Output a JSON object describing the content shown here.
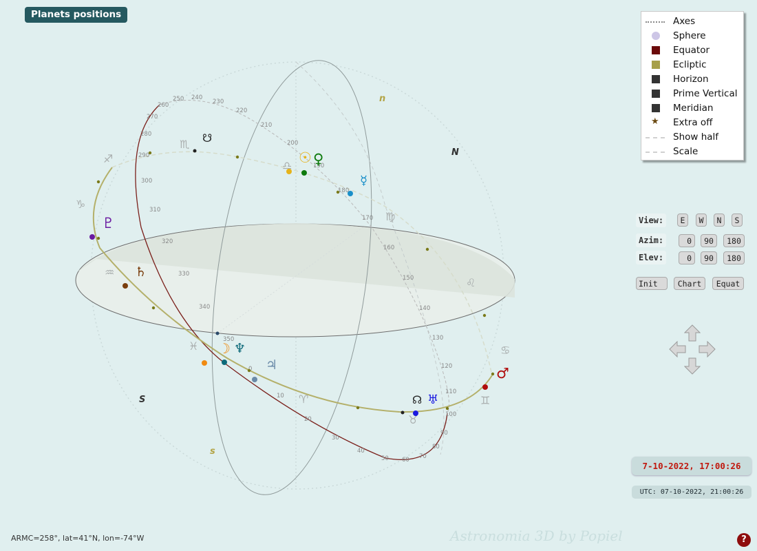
{
  "title": "Planets positions",
  "legend": [
    {
      "label": "Axes",
      "icon": "axes-dotted-line-icon",
      "color": "#888888"
    },
    {
      "label": "Sphere",
      "icon": "sphere-dot-icon",
      "color": "#cdc6e6"
    },
    {
      "label": "Equator",
      "icon": "equator-square-icon",
      "color": "#6b0a0a"
    },
    {
      "label": "Ecliptic",
      "icon": "ecliptic-square-icon",
      "color": "#a7a04a"
    },
    {
      "label": "Horizon",
      "icon": "horizon-square-icon",
      "color": "#333333"
    },
    {
      "label": "Prime Vertical",
      "icon": "prime-vertical-square-icon",
      "color": "#333333"
    },
    {
      "label": "Meridian",
      "icon": "meridian-square-icon",
      "color": "#333333"
    },
    {
      "label": "Extra off",
      "icon": "star-icon",
      "color": "#6b4a12"
    },
    {
      "label": "Show half",
      "icon": "dashed-line-icon",
      "color": "#d0d0d0"
    },
    {
      "label": "Scale",
      "icon": "dashed-line-icon",
      "color": "#d0d0d0"
    }
  ],
  "controls": {
    "view_label": "View:",
    "view_buttons": [
      "E",
      "W",
      "N",
      "S"
    ],
    "azim_label": "Azim:",
    "azim_buttons": [
      "0",
      "90",
      "180"
    ],
    "elev_label": "Elev:",
    "elev_buttons": [
      "0",
      "90",
      "180"
    ],
    "action_buttons": [
      "Init",
      "Chart",
      "Equat"
    ]
  },
  "date_local": "7-10-2022, 17:00:26",
  "date_utc": "UTC: 07-10-2022, 21:00:26",
  "status": "ARMC=258°, lat=41°N, lon=-74°W",
  "watermark": "Astronomia 3D by Popiel",
  "help_label": "?",
  "sky": {
    "directions": [
      "n",
      "N",
      "S",
      "s"
    ],
    "zodiac_signs": [
      "♐",
      "♑",
      "♒",
      "♓",
      "♈",
      "♉",
      "♊",
      "♋",
      "♌",
      "♍",
      "♎",
      "♏"
    ],
    "planets": [
      {
        "name": "Sun",
        "glyph": "☉",
        "color": "#e6b31a"
      },
      {
        "name": "Venus",
        "glyph": "♀",
        "color": "#0d7a0d"
      },
      {
        "name": "Mercury",
        "glyph": "☿",
        "color": "#1a8fc9"
      },
      {
        "name": "Pluto",
        "glyph": "♇",
        "color": "#6a1aa0"
      },
      {
        "name": "Saturn",
        "glyph": "♄",
        "color": "#7a3d0d"
      },
      {
        "name": "Moon",
        "glyph": "☽",
        "color": "#f08a10"
      },
      {
        "name": "Neptune",
        "glyph": "♆",
        "color": "#0d6a7a"
      },
      {
        "name": "Jupiter",
        "glyph": "♃",
        "color": "#6a8aa8"
      },
      {
        "name": "Uranus",
        "glyph": "♅",
        "color": "#1a1ae0"
      },
      {
        "name": "Mars",
        "glyph": "♂",
        "color": "#b00d0d"
      },
      {
        "name": "South Node",
        "glyph": "☋",
        "color": "#222222"
      },
      {
        "name": "North Node",
        "glyph": "☊",
        "color": "#222222"
      }
    ],
    "equator_ticks": [
      "240",
      "250",
      "260",
      "270",
      "280",
      "290",
      "300",
      "310",
      "320",
      "330",
      "340",
      "350",
      "0",
      "10",
      "20",
      "30",
      "40",
      "50",
      "60",
      "70",
      "80",
      "90",
      "100",
      "110",
      "120",
      "130",
      "140",
      "150",
      "160",
      "170",
      "180",
      "190",
      "200",
      "210",
      "220",
      "230"
    ]
  }
}
